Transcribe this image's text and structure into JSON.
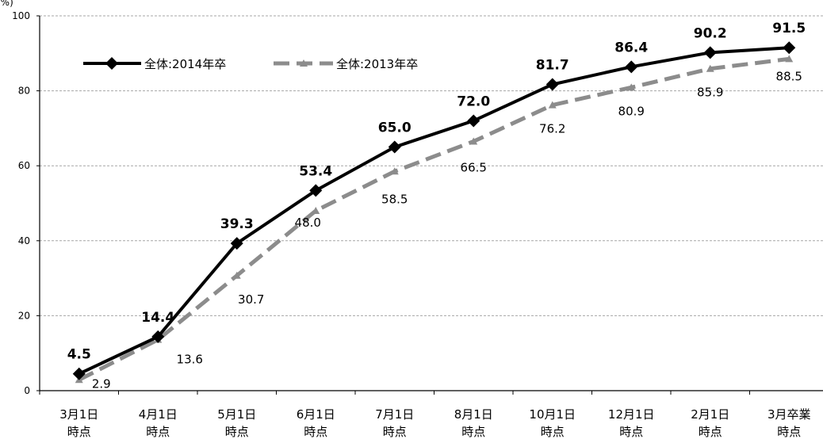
{
  "chart_data": {
    "type": "line",
    "unit_label": "(%)",
    "categories": [
      [
        "3月1日",
        "時点"
      ],
      [
        "4月1日",
        "時点"
      ],
      [
        "5月1日",
        "時点"
      ],
      [
        "6月1日",
        "時点"
      ],
      [
        "7月1日",
        "時点"
      ],
      [
        "8月1日",
        "時点"
      ],
      [
        "10月1日",
        "時点"
      ],
      [
        "12月1日",
        "時点"
      ],
      [
        "2月1日",
        "時点"
      ],
      [
        "3月卒業",
        "時点"
      ]
    ],
    "ylim": [
      0,
      100
    ],
    "yticks": [
      "0",
      "20",
      "40",
      "60",
      "80",
      "100"
    ],
    "grid": true,
    "legend_position": "top-left",
    "series": [
      {
        "name": "全体:2014年卒",
        "values": [
          4.5,
          14.4,
          39.3,
          53.4,
          65.0,
          72.0,
          81.7,
          86.4,
          90.2,
          91.5
        ],
        "labels": [
          "4.5",
          "14.4",
          "39.3",
          "53.4",
          "65.0",
          "72.0",
          "81.7",
          "86.4",
          "90.2",
          "91.5"
        ],
        "color": "#000000",
        "style": "solid",
        "marker": "diamond"
      },
      {
        "name": "全体:2013年卒",
        "values": [
          2.9,
          13.6,
          30.7,
          48.0,
          58.5,
          66.5,
          76.2,
          80.9,
          85.9,
          88.5
        ],
        "labels": [
          "2.9",
          "13.6",
          "30.7",
          "48.0",
          "58.5",
          "66.5",
          "76.2",
          "80.9",
          "85.9",
          "88.5"
        ],
        "color": "#8c8c8c",
        "style": "dashed",
        "marker": "triangle"
      }
    ]
  }
}
